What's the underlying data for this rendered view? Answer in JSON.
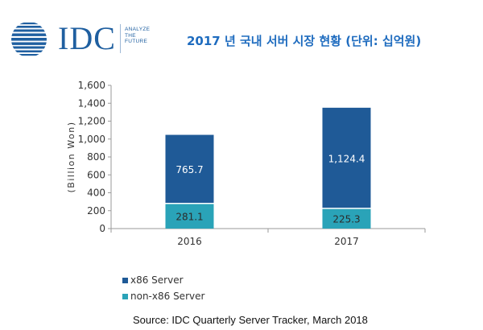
{
  "logo": {
    "text": "IDC",
    "tagline": [
      "ANALYZE",
      "THE",
      "FUTURE"
    ]
  },
  "title": "2017 년 국내 서버 시장 현황 (단위: 십억원)",
  "source": "Source:  IDC Quarterly Server Tracker, March 2018",
  "colors": {
    "x86": "#1f5a97",
    "non_x86": "#2aa3b8",
    "brand": "#1f5fa0",
    "title": "#1f6cbf"
  },
  "chart_data": {
    "type": "bar",
    "stacked": true,
    "title": "2017 년 국내 서버 시장 현황 (단위: 십억원)",
    "categories": [
      "2016",
      "2017"
    ],
    "series": [
      {
        "name": "non-x86 Server",
        "values": [
          281.1,
          225.3
        ],
        "labels": [
          "281.1",
          "225.3"
        ],
        "color": "#2aa3b8"
      },
      {
        "name": "x86 Server",
        "values": [
          765.7,
          1124.4
        ],
        "labels": [
          "765.7",
          "1,124.4"
        ],
        "color": "#1f5a97"
      }
    ],
    "xlabel": "",
    "ylabel": "(Billion Won)",
    "ylim": [
      0,
      1600
    ],
    "yticks": [
      0,
      200,
      400,
      600,
      800,
      1000,
      1200,
      1400,
      1600
    ],
    "ytick_labels": [
      "0",
      "200",
      "400",
      "600",
      "800",
      "1,000",
      "1,200",
      "1,400",
      "1,600"
    ],
    "legend": [
      "x86 Server",
      "non-x86 Server"
    ],
    "legend_position": "bottom-left"
  }
}
